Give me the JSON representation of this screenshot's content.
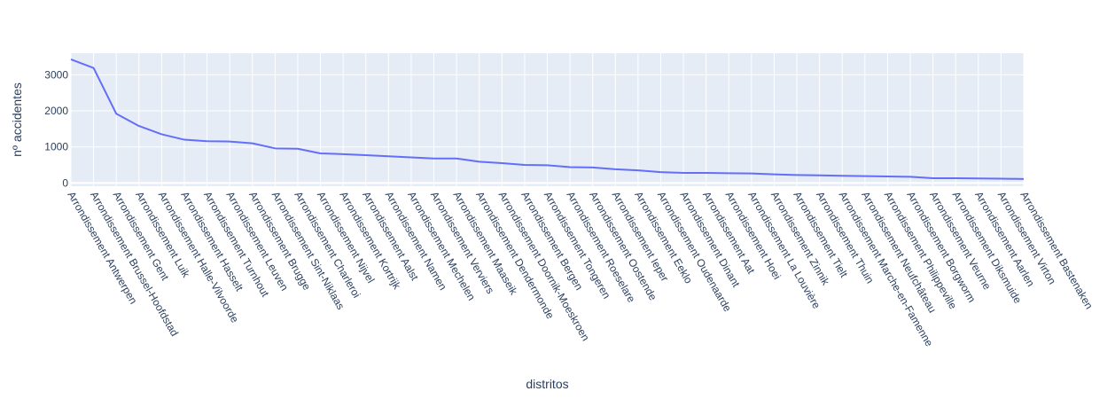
{
  "chart_data": {
    "type": "line",
    "xlabel": "distritos",
    "ylabel": "nº accidentes",
    "ylim": [
      -90,
      3600
    ],
    "yticks": [
      0,
      1000,
      2000,
      3000
    ],
    "ytick_labels": [
      "0",
      "1000",
      "2000",
      "3000"
    ],
    "grid": true,
    "colors": {
      "line": "#636efa",
      "plot_bg": "#e5ecf6",
      "grid": "#ffffff",
      "text": "#2a3f5f"
    },
    "categories": [
      "Arrondissement Antwerpen",
      "Arrondissement Brussel-Hoofdstad",
      "Arrondissement Gent",
      "Arrondissement Luik",
      "Arrondissement Halle-Vilvoorde",
      "Arrondissement Hasselt",
      "Arrondissement Turnhout",
      "Arrondissement Leuven",
      "Arrondissement Brugge",
      "Arrondissement Sint-Niklaas",
      "Arrondissement Charleroi",
      "Arrondissement Nijvel",
      "Arrondissement Kortrijk",
      "Arrondissement Aalst",
      "Arrondissement Namen",
      "Arrondissement Mechelen",
      "Arrondissement Verviers",
      "Arrondissement Maaseik",
      "Arrondissement Dendermonde",
      "Arrondissement Doornik-Moeskroen",
      "Arrondissement Bergen",
      "Arrondissement Tongeren",
      "Arrondissement Roeselare",
      "Arrondissement Oostende",
      "Arrondissement Ieper",
      "Arrondissement Eeklo",
      "Arrondissement Oudenaarde",
      "Arrondissement Dinant",
      "Arrondissement Aat",
      "Arrondissement Hoei",
      "Arrondissement La Louvière",
      "Arrondissement Zinnik",
      "Arrondissement Tielt",
      "Arrondissement Thuin",
      "Arrondissement Marche-en-Famenne",
      "Arrondissement Neufchâteau",
      "Arrondissement Philippeville",
      "Arrondissement Borgworm",
      "Arrondissement Veurne",
      "Arrondissement Diksmuide",
      "Arrondissement Aarlen",
      "Arrondissement Virton",
      "Arrondissement Bastenaken"
    ],
    "values": [
      3430,
      3190,
      1920,
      1580,
      1350,
      1200,
      1160,
      1150,
      1100,
      960,
      950,
      820,
      800,
      770,
      740,
      710,
      680,
      680,
      590,
      550,
      500,
      490,
      440,
      430,
      380,
      350,
      300,
      280,
      280,
      270,
      265,
      240,
      220,
      210,
      200,
      190,
      180,
      170,
      130,
      130,
      125,
      120,
      110
    ]
  }
}
